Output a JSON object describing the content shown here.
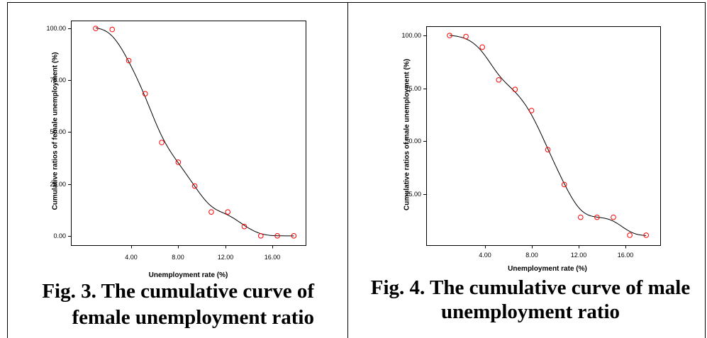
{
  "figures": [
    {
      "caption": [
        "Fig. 3. The cumulative curve of",
        "female unemployment ratio"
      ]
    },
    {
      "caption": [
        "Fig. 4. The cumulative curve of male",
        "unemployment ratio"
      ]
    }
  ],
  "colors": {
    "marker": "#ff0000",
    "fit_line": "#000000",
    "frame": "#000000",
    "text": "#000000",
    "background": "#ffffff"
  },
  "chart_data": [
    {
      "type": "scatter",
      "xlabel": "Unemployment rate (%)",
      "ylabel": "Cumulative ratios of female unemployment (%)",
      "x_ticks": [
        4,
        8,
        12,
        16
      ],
      "x_tick_labels": [
        "4.00",
        "8.00",
        "12.00",
        "16.00"
      ],
      "y_ticks": [
        0,
        25,
        50,
        75,
        100
      ],
      "y_tick_labels": [
        "0.00",
        "25.00",
        "50.00",
        "75.00",
        "100.00"
      ],
      "xlim": [
        -1.1,
        18.8
      ],
      "ylim": [
        -4.5,
        103.8
      ],
      "grid": false,
      "fit_line": true,
      "series": [
        {
          "x": [
            1.0,
            2.4,
            3.8,
            5.2,
            6.6,
            8.0,
            9.4,
            10.8,
            12.2,
            13.6,
            15.0,
            16.4,
            17.8
          ],
          "y": [
            100,
            99.5,
            84.5,
            68.5,
            45,
            35.5,
            24,
            11.5,
            11.5,
            4.5,
            0,
            0,
            0
          ]
        }
      ]
    },
    {
      "type": "scatter",
      "xlabel": "Unemployment rate (%)",
      "ylabel": "Cumulative ratios of male unemployment (%)",
      "x_ticks": [
        4,
        8,
        12,
        16
      ],
      "x_tick_labels": [
        "4.00",
        "8.00",
        "12.00",
        "16.00"
      ],
      "y_ticks": [
        25,
        50,
        75,
        100
      ],
      "y_tick_labels": [
        "25.00",
        "50.00",
        "75.00",
        "100.00"
      ],
      "xlim": [
        -1.0,
        19.0
      ],
      "ylim": [
        0.8,
        104.4
      ],
      "grid": false,
      "fit_line": true,
      "series": [
        {
          "x": [
            1.0,
            2.4,
            3.8,
            5.2,
            6.6,
            8.0,
            9.4,
            10.8,
            12.2,
            13.6,
            15.0,
            16.4,
            17.8
          ],
          "y": [
            100,
            99.5,
            94.5,
            79,
            74.5,
            64.5,
            46,
            29.5,
            14,
            14,
            14,
            5.5,
            5.5
          ]
        }
      ]
    }
  ]
}
